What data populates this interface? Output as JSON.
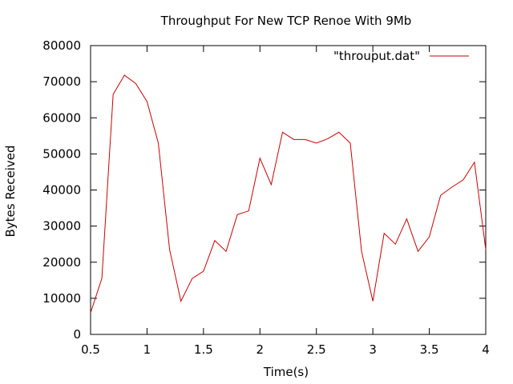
{
  "chart_data": {
    "type": "line",
    "title": "Throughput For New TCP Renoe With 9Mb",
    "xlabel": "Time(s)",
    "ylabel": "Bytes Received",
    "xlim": [
      0.5,
      4
    ],
    "ylim": [
      0,
      80000
    ],
    "x_ticks": [
      "0.5",
      "1",
      "1.5",
      "2",
      "2.5",
      "3",
      "3.5",
      "4"
    ],
    "y_ticks": [
      "0",
      "10000",
      "20000",
      "30000",
      "40000",
      "50000",
      "60000",
      "70000",
      "80000"
    ],
    "grid": false,
    "legend_position": "top-right",
    "series": [
      {
        "name": "\"throuput.dat\"",
        "color": "#cc0000",
        "x": [
          0.5,
          0.6,
          0.7,
          0.8,
          0.9,
          1.0,
          1.1,
          1.2,
          1.3,
          1.4,
          1.5,
          1.6,
          1.7,
          1.8,
          1.9,
          2.0,
          2.1,
          2.2,
          2.3,
          2.4,
          2.5,
          2.6,
          2.7,
          2.8,
          2.9,
          3.0,
          3.1,
          3.2,
          3.3,
          3.4,
          3.5,
          3.6,
          3.7,
          3.8,
          3.9,
          4.0
        ],
        "y": [
          6000,
          15500,
          66500,
          71800,
          69500,
          64500,
          53000,
          23500,
          9200,
          15500,
          17500,
          26000,
          23000,
          33200,
          34200,
          48800,
          41500,
          56000,
          54000,
          54000,
          53000,
          54200,
          56000,
          53000,
          23000,
          9200,
          28000,
          25000,
          32000,
          23000,
          27000,
          38500,
          40800,
          42800,
          47700,
          23500
        ]
      }
    ]
  }
}
